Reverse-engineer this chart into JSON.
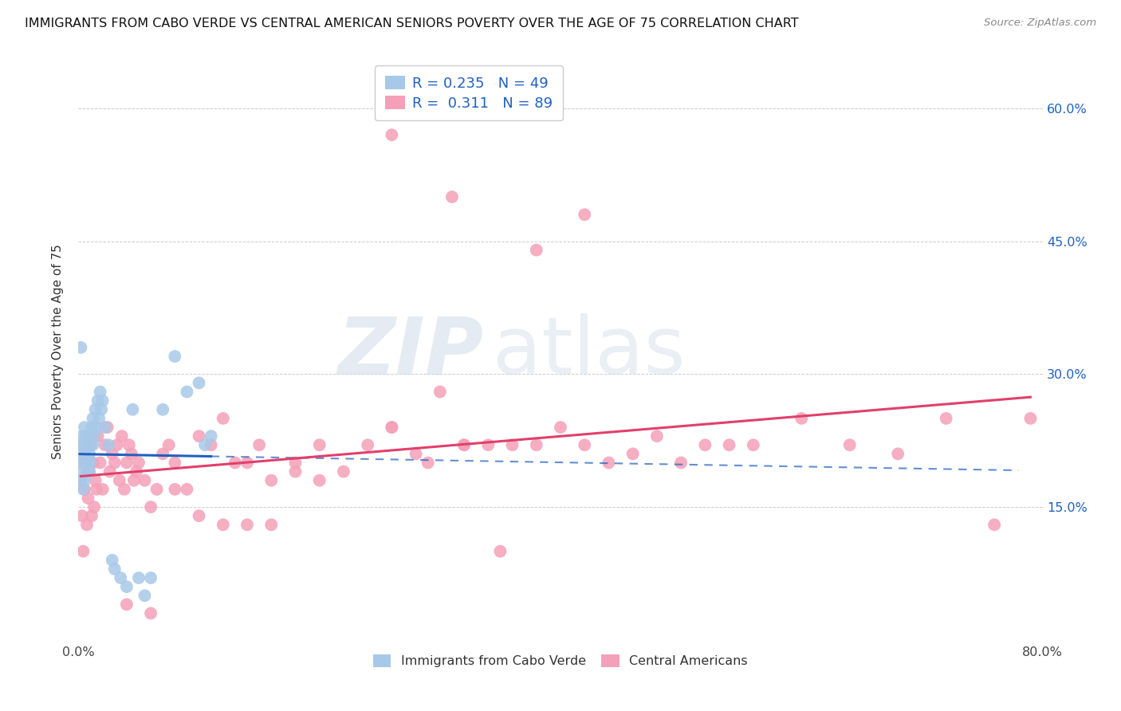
{
  "title": "IMMIGRANTS FROM CABO VERDE VS CENTRAL AMERICAN SENIORS POVERTY OVER THE AGE OF 75 CORRELATION CHART",
  "source": "Source: ZipAtlas.com",
  "ylabel": "Seniors Poverty Over the Age of 75",
  "r_blue": 0.235,
  "n_blue": 49,
  "r_pink": 0.311,
  "n_pink": 89,
  "xlim": [
    0.0,
    0.8
  ],
  "ylim": [
    0.0,
    0.65
  ],
  "blue_color": "#a8c8e8",
  "pink_color": "#f4a0b8",
  "blue_line_color": "#2060c0",
  "pink_line_color": "#e0406a",
  "blue_label": "Immigrants from Cabo Verde",
  "pink_label": "Central Americans",
  "watermark_zip": "ZIP",
  "watermark_atlas": "atlas",
  "legend_text_color": "#222222",
  "legend_value_color": "#2060c0",
  "right_axis_color": "#2060c0",
  "blue_x": [
    0.001,
    0.002,
    0.002,
    0.003,
    0.003,
    0.003,
    0.004,
    0.004,
    0.005,
    0.005,
    0.005,
    0.006,
    0.006,
    0.007,
    0.007,
    0.008,
    0.008,
    0.009,
    0.009,
    0.01,
    0.01,
    0.011,
    0.012,
    0.012,
    0.013,
    0.014,
    0.015,
    0.016,
    0.017,
    0.018,
    0.019,
    0.02,
    0.022,
    0.025,
    0.028,
    0.03,
    0.035,
    0.04,
    0.045,
    0.05,
    0.055,
    0.06,
    0.07,
    0.08,
    0.09,
    0.1,
    0.105,
    0.11,
    0.002
  ],
  "blue_y": [
    0.2,
    0.22,
    0.18,
    0.19,
    0.21,
    0.23,
    0.17,
    0.22,
    0.2,
    0.24,
    0.18,
    0.21,
    0.23,
    0.19,
    0.22,
    0.2,
    0.23,
    0.21,
    0.19,
    0.22,
    0.2,
    0.24,
    0.22,
    0.25,
    0.23,
    0.26,
    0.24,
    0.27,
    0.25,
    0.28,
    0.26,
    0.27,
    0.24,
    0.22,
    0.09,
    0.08,
    0.07,
    0.06,
    0.26,
    0.07,
    0.05,
    0.07,
    0.26,
    0.32,
    0.28,
    0.29,
    0.22,
    0.23,
    0.33
  ],
  "pink_x": [
    0.002,
    0.003,
    0.004,
    0.005,
    0.006,
    0.007,
    0.008,
    0.009,
    0.01,
    0.011,
    0.012,
    0.013,
    0.014,
    0.015,
    0.016,
    0.018,
    0.02,
    0.022,
    0.024,
    0.026,
    0.028,
    0.03,
    0.032,
    0.034,
    0.036,
    0.038,
    0.04,
    0.042,
    0.044,
    0.046,
    0.048,
    0.05,
    0.055,
    0.06,
    0.065,
    0.07,
    0.075,
    0.08,
    0.09,
    0.1,
    0.11,
    0.12,
    0.13,
    0.14,
    0.15,
    0.16,
    0.18,
    0.2,
    0.22,
    0.24,
    0.26,
    0.28,
    0.3,
    0.32,
    0.34,
    0.36,
    0.38,
    0.4,
    0.42,
    0.44,
    0.46,
    0.48,
    0.5,
    0.52,
    0.54,
    0.56,
    0.6,
    0.64,
    0.68,
    0.72,
    0.76,
    0.79,
    0.26,
    0.29,
    0.32,
    0.35,
    0.2,
    0.18,
    0.16,
    0.14,
    0.12,
    0.1,
    0.08,
    0.06,
    0.04,
    0.26,
    0.31,
    0.42,
    0.38
  ],
  "pink_y": [
    0.18,
    0.14,
    0.1,
    0.17,
    0.2,
    0.13,
    0.16,
    0.19,
    0.22,
    0.14,
    0.2,
    0.15,
    0.18,
    0.17,
    0.23,
    0.2,
    0.17,
    0.22,
    0.24,
    0.19,
    0.21,
    0.2,
    0.22,
    0.18,
    0.23,
    0.17,
    0.2,
    0.22,
    0.21,
    0.18,
    0.19,
    0.2,
    0.18,
    0.15,
    0.17,
    0.21,
    0.22,
    0.2,
    0.17,
    0.23,
    0.22,
    0.25,
    0.2,
    0.2,
    0.22,
    0.18,
    0.19,
    0.18,
    0.19,
    0.22,
    0.24,
    0.21,
    0.28,
    0.22,
    0.22,
    0.22,
    0.22,
    0.24,
    0.22,
    0.2,
    0.21,
    0.23,
    0.2,
    0.22,
    0.22,
    0.22,
    0.25,
    0.22,
    0.21,
    0.25,
    0.13,
    0.25,
    0.24,
    0.2,
    0.22,
    0.1,
    0.22,
    0.2,
    0.13,
    0.13,
    0.13,
    0.14,
    0.17,
    0.03,
    0.04,
    0.57,
    0.5,
    0.48,
    0.44
  ]
}
